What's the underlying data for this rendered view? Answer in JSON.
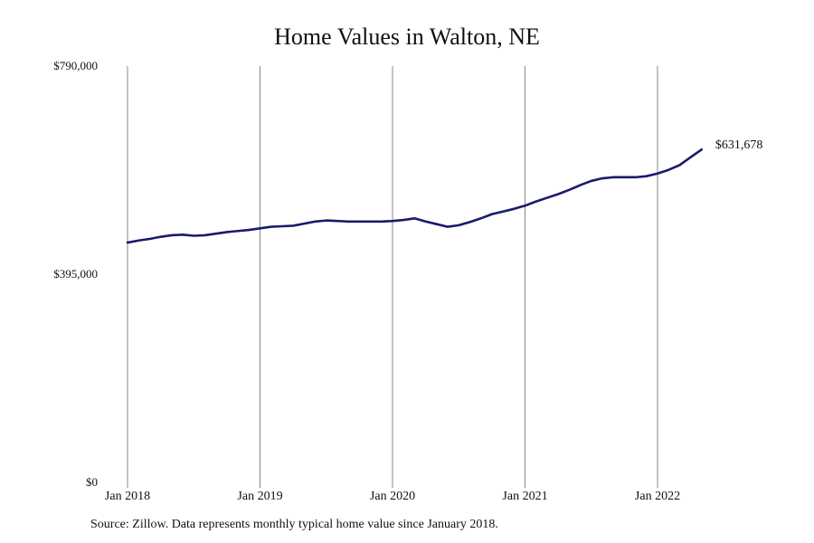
{
  "chart_data": {
    "type": "line",
    "title": "Home Values in Walton, NE",
    "source_note": "Source: Zillow. Data represents monthly typical home value since January 2018.",
    "ylim": [
      0,
      790000
    ],
    "y_ticks": [
      {
        "value": 0,
        "label": "$0"
      },
      {
        "value": 395000,
        "label": "$395,000"
      },
      {
        "value": 790000,
        "label": "$790,000"
      }
    ],
    "x_ticks": [
      {
        "value": "2018-01",
        "label": "Jan 2018"
      },
      {
        "value": "2019-01",
        "label": "Jan 2019"
      },
      {
        "value": "2020-01",
        "label": "Jan 2020"
      },
      {
        "value": "2021-01",
        "label": "Jan 2021"
      },
      {
        "value": "2022-01",
        "label": "Jan 2022"
      }
    ],
    "grid": {
      "vertical": true,
      "horizontal": false
    },
    "line_color": "#1a1a6e",
    "grid_color": "#888888",
    "end_label": "$631,678",
    "series": [
      {
        "x": [
          "2018-01",
          "2018-02",
          "2018-03",
          "2018-04",
          "2018-05",
          "2018-06",
          "2018-07",
          "2018-08",
          "2018-09",
          "2018-10",
          "2018-11",
          "2018-12",
          "2019-01",
          "2019-02",
          "2019-03",
          "2019-04",
          "2019-05",
          "2019-06",
          "2019-07",
          "2019-08",
          "2019-09",
          "2019-10",
          "2019-11",
          "2019-12",
          "2020-01",
          "2020-02",
          "2020-03",
          "2020-04",
          "2020-05",
          "2020-06",
          "2020-07",
          "2020-08",
          "2020-09",
          "2020-10",
          "2020-11",
          "2020-12",
          "2021-01",
          "2021-02",
          "2021-03",
          "2021-04",
          "2021-05",
          "2021-06",
          "2021-07",
          "2021-08",
          "2021-09",
          "2021-10",
          "2021-11",
          "2021-12",
          "2022-01",
          "2022-02",
          "2022-03",
          "2022-04",
          "2022-05"
        ],
        "values": [
          455000,
          459000,
          462000,
          466000,
          469000,
          470000,
          468000,
          469000,
          472000,
          475000,
          477000,
          479000,
          482000,
          485000,
          486000,
          487000,
          491000,
          495000,
          497000,
          496000,
          495000,
          495000,
          495000,
          495000,
          496000,
          498000,
          501000,
          495000,
          490000,
          485000,
          488000,
          494000,
          501000,
          509000,
          514000,
          519000,
          525000,
          533000,
          540000,
          547000,
          555000,
          564000,
          572000,
          577000,
          579000,
          579000,
          579000,
          581000,
          586000,
          593000,
          602000,
          617000,
          631678
        ]
      }
    ]
  }
}
